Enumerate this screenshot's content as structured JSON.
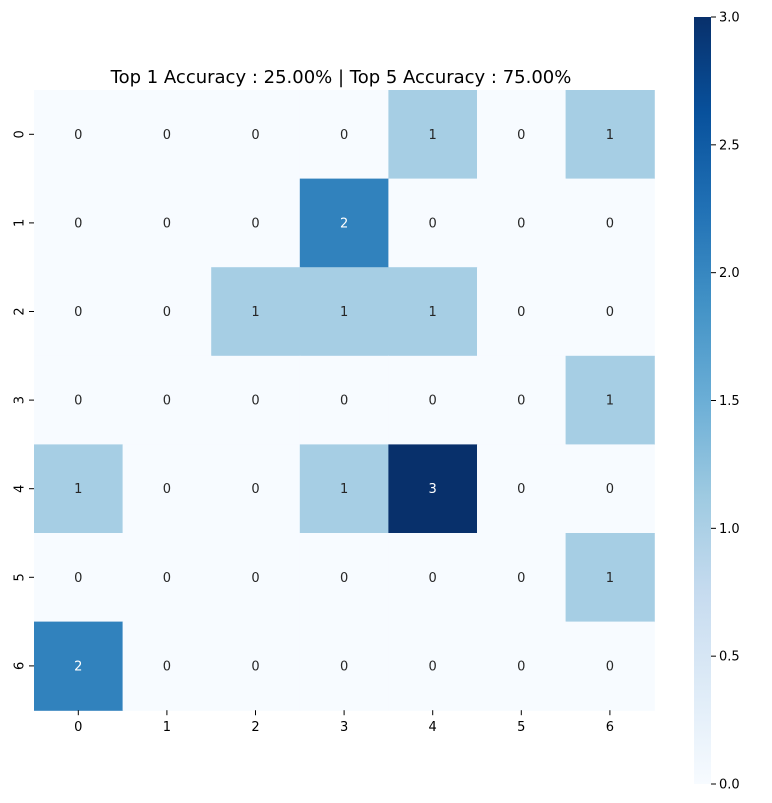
{
  "chart_data": {
    "type": "heatmap",
    "title": "Top 1 Accuracy : 25.00% | Top 5 Accuracy : 75.00%",
    "xlabel": "",
    "ylabel": "",
    "x_categories": [
      "0",
      "1",
      "2",
      "3",
      "4",
      "5",
      "6"
    ],
    "y_categories": [
      "0",
      "1",
      "2",
      "3",
      "4",
      "5",
      "6"
    ],
    "values": [
      [
        0,
        0,
        0,
        0,
        1,
        0,
        1
      ],
      [
        0,
        0,
        0,
        2,
        0,
        0,
        0
      ],
      [
        0,
        0,
        1,
        1,
        1,
        0,
        0
      ],
      [
        0,
        0,
        0,
        0,
        0,
        0,
        1
      ],
      [
        1,
        0,
        0,
        1,
        3,
        0,
        0
      ],
      [
        0,
        0,
        0,
        0,
        0,
        0,
        1
      ],
      [
        2,
        0,
        0,
        0,
        0,
        0,
        0
      ]
    ],
    "colormap": "Blues",
    "color_range": [
      0,
      3
    ],
    "colorbar_ticks": [
      "0.0",
      "0.5",
      "1.0",
      "1.5",
      "2.0",
      "2.5",
      "3.0"
    ],
    "colors": {
      "0": "#f7fbff",
      "1": "#a6cee4",
      "2": "#3182bd",
      "3": "#08306b"
    },
    "annotation_colors": {
      "light_cell": "#262626",
      "dark_cell": "#ffffff"
    }
  }
}
